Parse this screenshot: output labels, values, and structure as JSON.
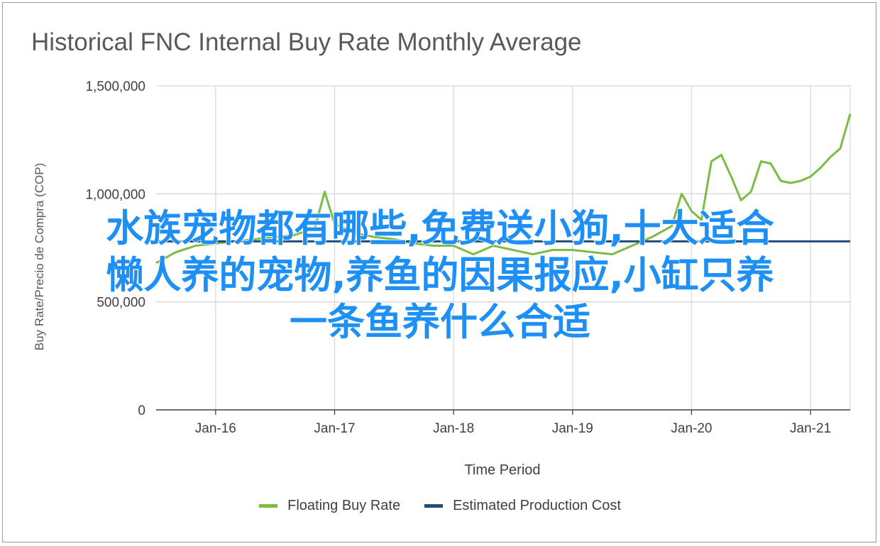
{
  "chart_data": {
    "type": "line",
    "title": "Historical FNC Internal Buy Rate Monthly Average",
    "xlabel": "Time Period",
    "ylabel": "Buy Rate/Precio de Compra (COP)",
    "ylim": [
      0,
      1500000
    ],
    "yticks": [
      {
        "value": 0,
        "label": "0"
      },
      {
        "value": 500000,
        "label": "500,000"
      },
      {
        "value": 1000000,
        "label": "1,000,000"
      },
      {
        "value": 1500000,
        "label": "1,500,000"
      }
    ],
    "xlim": [
      "2015-07",
      "2021-05"
    ],
    "xticks": [
      {
        "date": "2016-01",
        "label": "Jan-16"
      },
      {
        "date": "2017-01",
        "label": "Jan-17"
      },
      {
        "date": "2018-01",
        "label": "Jan-18"
      },
      {
        "date": "2019-01",
        "label": "Jan-19"
      },
      {
        "date": "2020-01",
        "label": "Jan-20"
      },
      {
        "date": "2021-01",
        "label": "Jan-21"
      }
    ],
    "grid": true,
    "legend_position": "bottom",
    "series": [
      {
        "name": "Floating Buy Rate",
        "color": "#7cbc43",
        "points": [
          [
            "2015-07",
            680000
          ],
          [
            "2015-09",
            730000
          ],
          [
            "2015-11",
            760000
          ],
          [
            "2016-01",
            770000
          ],
          [
            "2016-03",
            780000
          ],
          [
            "2016-05",
            790000
          ],
          [
            "2016-07",
            800000
          ],
          [
            "2016-09",
            810000
          ],
          [
            "2016-11",
            840000
          ],
          [
            "2016-12",
            1010000
          ],
          [
            "2017-01",
            860000
          ],
          [
            "2017-03",
            820000
          ],
          [
            "2017-05",
            800000
          ],
          [
            "2017-07",
            790000
          ],
          [
            "2017-09",
            770000
          ],
          [
            "2017-11",
            760000
          ],
          [
            "2018-01",
            760000
          ],
          [
            "2018-03",
            720000
          ],
          [
            "2018-05",
            760000
          ],
          [
            "2018-07",
            740000
          ],
          [
            "2018-09",
            720000
          ],
          [
            "2018-11",
            740000
          ],
          [
            "2019-01",
            740000
          ],
          [
            "2019-03",
            730000
          ],
          [
            "2019-05",
            720000
          ],
          [
            "2019-07",
            760000
          ],
          [
            "2019-09",
            800000
          ],
          [
            "2019-11",
            850000
          ],
          [
            "2019-12",
            1000000
          ],
          [
            "2020-01",
            920000
          ],
          [
            "2020-02",
            880000
          ],
          [
            "2020-03",
            1150000
          ],
          [
            "2020-04",
            1180000
          ],
          [
            "2020-05",
            1080000
          ],
          [
            "2020-06",
            970000
          ],
          [
            "2020-07",
            1010000
          ],
          [
            "2020-08",
            1150000
          ],
          [
            "2020-09",
            1140000
          ],
          [
            "2020-10",
            1060000
          ],
          [
            "2020-11",
            1050000
          ],
          [
            "2020-12",
            1060000
          ],
          [
            "2021-01",
            1080000
          ],
          [
            "2021-02",
            1120000
          ],
          [
            "2021-03",
            1170000
          ],
          [
            "2021-04",
            1210000
          ],
          [
            "2021-05",
            1370000
          ]
        ]
      },
      {
        "name": "Estimated Production Cost",
        "color": "#1f4e79",
        "points": [
          [
            "2015-07",
            780000
          ],
          [
            "2021-05",
            780000
          ]
        ]
      }
    ]
  },
  "legend": {
    "items": [
      {
        "label": "Floating Buy Rate",
        "color": "#7cbc43"
      },
      {
        "label": "Estimated Production Cost",
        "color": "#1f4e79"
      }
    ]
  },
  "overlay": {
    "line1": "水族宠物都有哪些,免费送小狗,十大适合",
    "line2": "懒人养的宠物,养鱼的因果报应,小缸只养",
    "line3": "一条鱼养什么合适",
    "color": "#1e90f5"
  }
}
